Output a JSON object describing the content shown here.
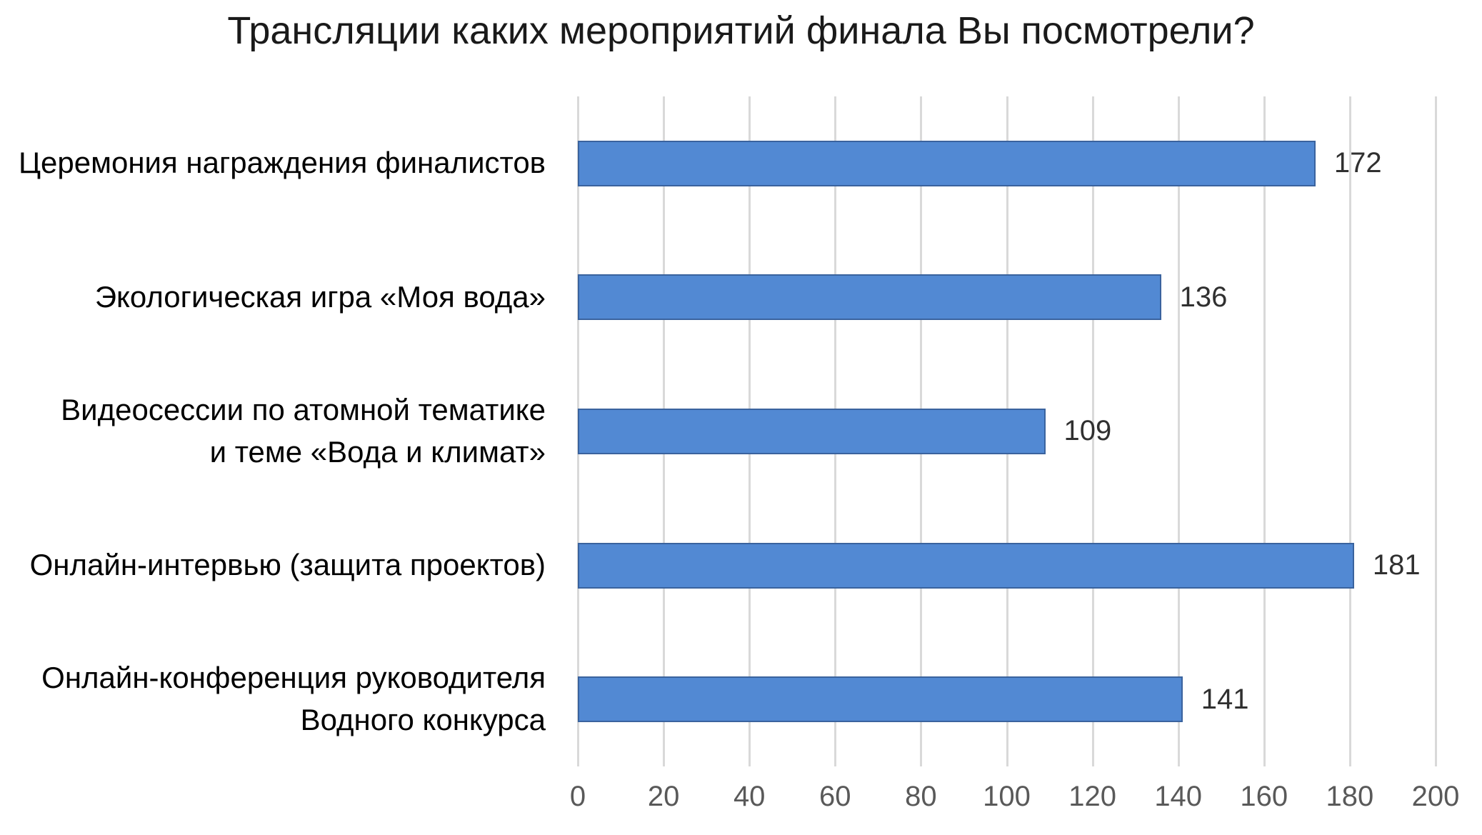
{
  "chart_data": {
    "type": "bar",
    "orientation": "horizontal",
    "title": "Трансляции каких мероприятий финала Вы посмотрели?",
    "categories": [
      "Церемония награждения финалистов",
      "Экологическая игра «Моя вода»",
      "Видеосессии по атомной тематике\nи теме «Вода и климат»",
      "Онлайн-интервью (защита проектов)",
      "Онлайн-конференция руководителя\nВодного конкурса"
    ],
    "values": [
      172,
      136,
      109,
      181,
      141
    ],
    "xlabel": "",
    "ylabel": "",
    "xlim": [
      0,
      200
    ],
    "xticks": [
      0,
      20,
      40,
      60,
      80,
      100,
      120,
      140,
      160,
      180,
      200
    ],
    "grid": true,
    "legend": false,
    "value_labels_shown": true,
    "colors": {
      "bar_fill": "#5289d3",
      "bar_border": "#3a639e",
      "gridline": "#d9d9d9",
      "tick_label": "#595959",
      "value_label": "#303030",
      "title": "#1a1a1a",
      "background": "#ffffff"
    }
  }
}
